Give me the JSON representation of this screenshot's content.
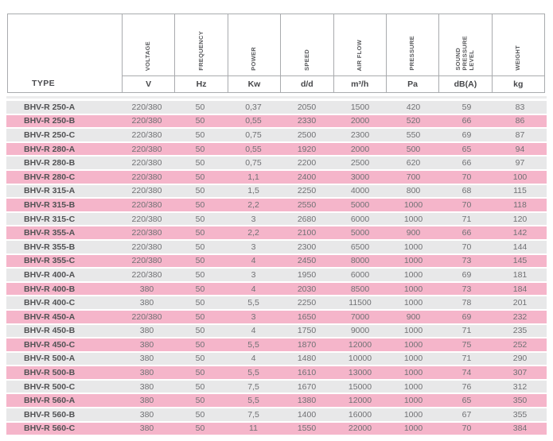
{
  "colors": {
    "row_gray": "#e8e8e9",
    "row_pink": "#f5b5ca",
    "border": "#a9abae",
    "header_text": "#4a4b4e",
    "body_text": "#707174"
  },
  "table": {
    "type_header": "TYPE",
    "columns": [
      {
        "label": "VOLTAGE",
        "unit": "V"
      },
      {
        "label": "FREQUENCY",
        "unit": "Hz"
      },
      {
        "label": "POWER",
        "unit": "Kw"
      },
      {
        "label": "SPEED",
        "unit": "d/d"
      },
      {
        "label": "AIR FLOW",
        "unit": "m³/h"
      },
      {
        "label": "PRESSURE",
        "unit": "Pa"
      },
      {
        "label": "SOUND\nPRESSURE\nLEVEL",
        "unit": "dB(A)"
      },
      {
        "label": "WEIGHT",
        "unit": "kg"
      }
    ],
    "rows": [
      {
        "type": "BHV-R 250-A",
        "values": [
          "220/380",
          "50",
          "0,37",
          "2050",
          "1500",
          "420",
          "59",
          "83"
        ]
      },
      {
        "type": "BHV-R 250-B",
        "values": [
          "220/380",
          "50",
          "0,55",
          "2330",
          "2000",
          "520",
          "66",
          "86"
        ]
      },
      {
        "type": "BHV-R 250-C",
        "values": [
          "220/380",
          "50",
          "0,75",
          "2500",
          "2300",
          "550",
          "69",
          "87"
        ]
      },
      {
        "type": "BHV-R 280-A",
        "values": [
          "220/380",
          "50",
          "0,55",
          "1920",
          "2000",
          "500",
          "65",
          "94"
        ]
      },
      {
        "type": "BHV-R 280-B",
        "values": [
          "220/380",
          "50",
          "0,75",
          "2200",
          "2500",
          "620",
          "66",
          "97"
        ]
      },
      {
        "type": "BHV-R 280-C",
        "values": [
          "220/380",
          "50",
          "1,1",
          "2400",
          "3000",
          "700",
          "70",
          "100"
        ]
      },
      {
        "type": "BHV-R 315-A",
        "values": [
          "220/380",
          "50",
          "1,5",
          "2250",
          "4000",
          "800",
          "68",
          "115"
        ]
      },
      {
        "type": "BHV-R 315-B",
        "values": [
          "220/380",
          "50",
          "2,2",
          "2550",
          "5000",
          "1000",
          "70",
          "118"
        ]
      },
      {
        "type": "BHV-R 315-C",
        "values": [
          "220/380",
          "50",
          "3",
          "2680",
          "6000",
          "1000",
          "71",
          "120"
        ]
      },
      {
        "type": "BHV-R 355-A",
        "values": [
          "220/380",
          "50",
          "2,2",
          "2100",
          "5000",
          "900",
          "66",
          "142"
        ]
      },
      {
        "type": "BHV-R 355-B",
        "values": [
          "220/380",
          "50",
          "3",
          "2300",
          "6500",
          "1000",
          "70",
          "144"
        ]
      },
      {
        "type": "BHV-R 355-C",
        "values": [
          "220/380",
          "50",
          "4",
          "2450",
          "8000",
          "1000",
          "73",
          "145"
        ]
      },
      {
        "type": "BHV-R 400-A",
        "values": [
          "220/380",
          "50",
          "3",
          "1950",
          "6000",
          "1000",
          "69",
          "181"
        ]
      },
      {
        "type": "BHV-R 400-B",
        "values": [
          "380",
          "50",
          "4",
          "2030",
          "8500",
          "1000",
          "73",
          "184"
        ]
      },
      {
        "type": "BHV-R 400-C",
        "values": [
          "380",
          "50",
          "5,5",
          "2250",
          "11500",
          "1000",
          "78",
          "201"
        ]
      },
      {
        "type": "BHV-R 450-A",
        "values": [
          "220/380",
          "50",
          "3",
          "1650",
          "7000",
          "900",
          "69",
          "232"
        ]
      },
      {
        "type": "BHV-R 450-B",
        "values": [
          "380",
          "50",
          "4",
          "1750",
          "9000",
          "1000",
          "71",
          "235"
        ]
      },
      {
        "type": "BHV-R 450-C",
        "values": [
          "380",
          "50",
          "5,5",
          "1870",
          "12000",
          "1000",
          "75",
          "252"
        ]
      },
      {
        "type": "BHV-R 500-A",
        "values": [
          "380",
          "50",
          "4",
          "1480",
          "10000",
          "1000",
          "71",
          "290"
        ]
      },
      {
        "type": "BHV-R 500-B",
        "values": [
          "380",
          "50",
          "5,5",
          "1610",
          "13000",
          "1000",
          "74",
          "307"
        ]
      },
      {
        "type": "BHV-R 500-C",
        "values": [
          "380",
          "50",
          "7,5",
          "1670",
          "15000",
          "1000",
          "76",
          "312"
        ]
      },
      {
        "type": "BHV-R 560-A",
        "values": [
          "380",
          "50",
          "5,5",
          "1380",
          "12000",
          "1000",
          "65",
          "350"
        ]
      },
      {
        "type": "BHV-R 560-B",
        "values": [
          "380",
          "50",
          "7,5",
          "1400",
          "16000",
          "1000",
          "67",
          "355"
        ]
      },
      {
        "type": "BHV-R 560-C",
        "values": [
          "380",
          "50",
          "11",
          "1550",
          "22000",
          "1000",
          "70",
          "384"
        ]
      }
    ]
  }
}
